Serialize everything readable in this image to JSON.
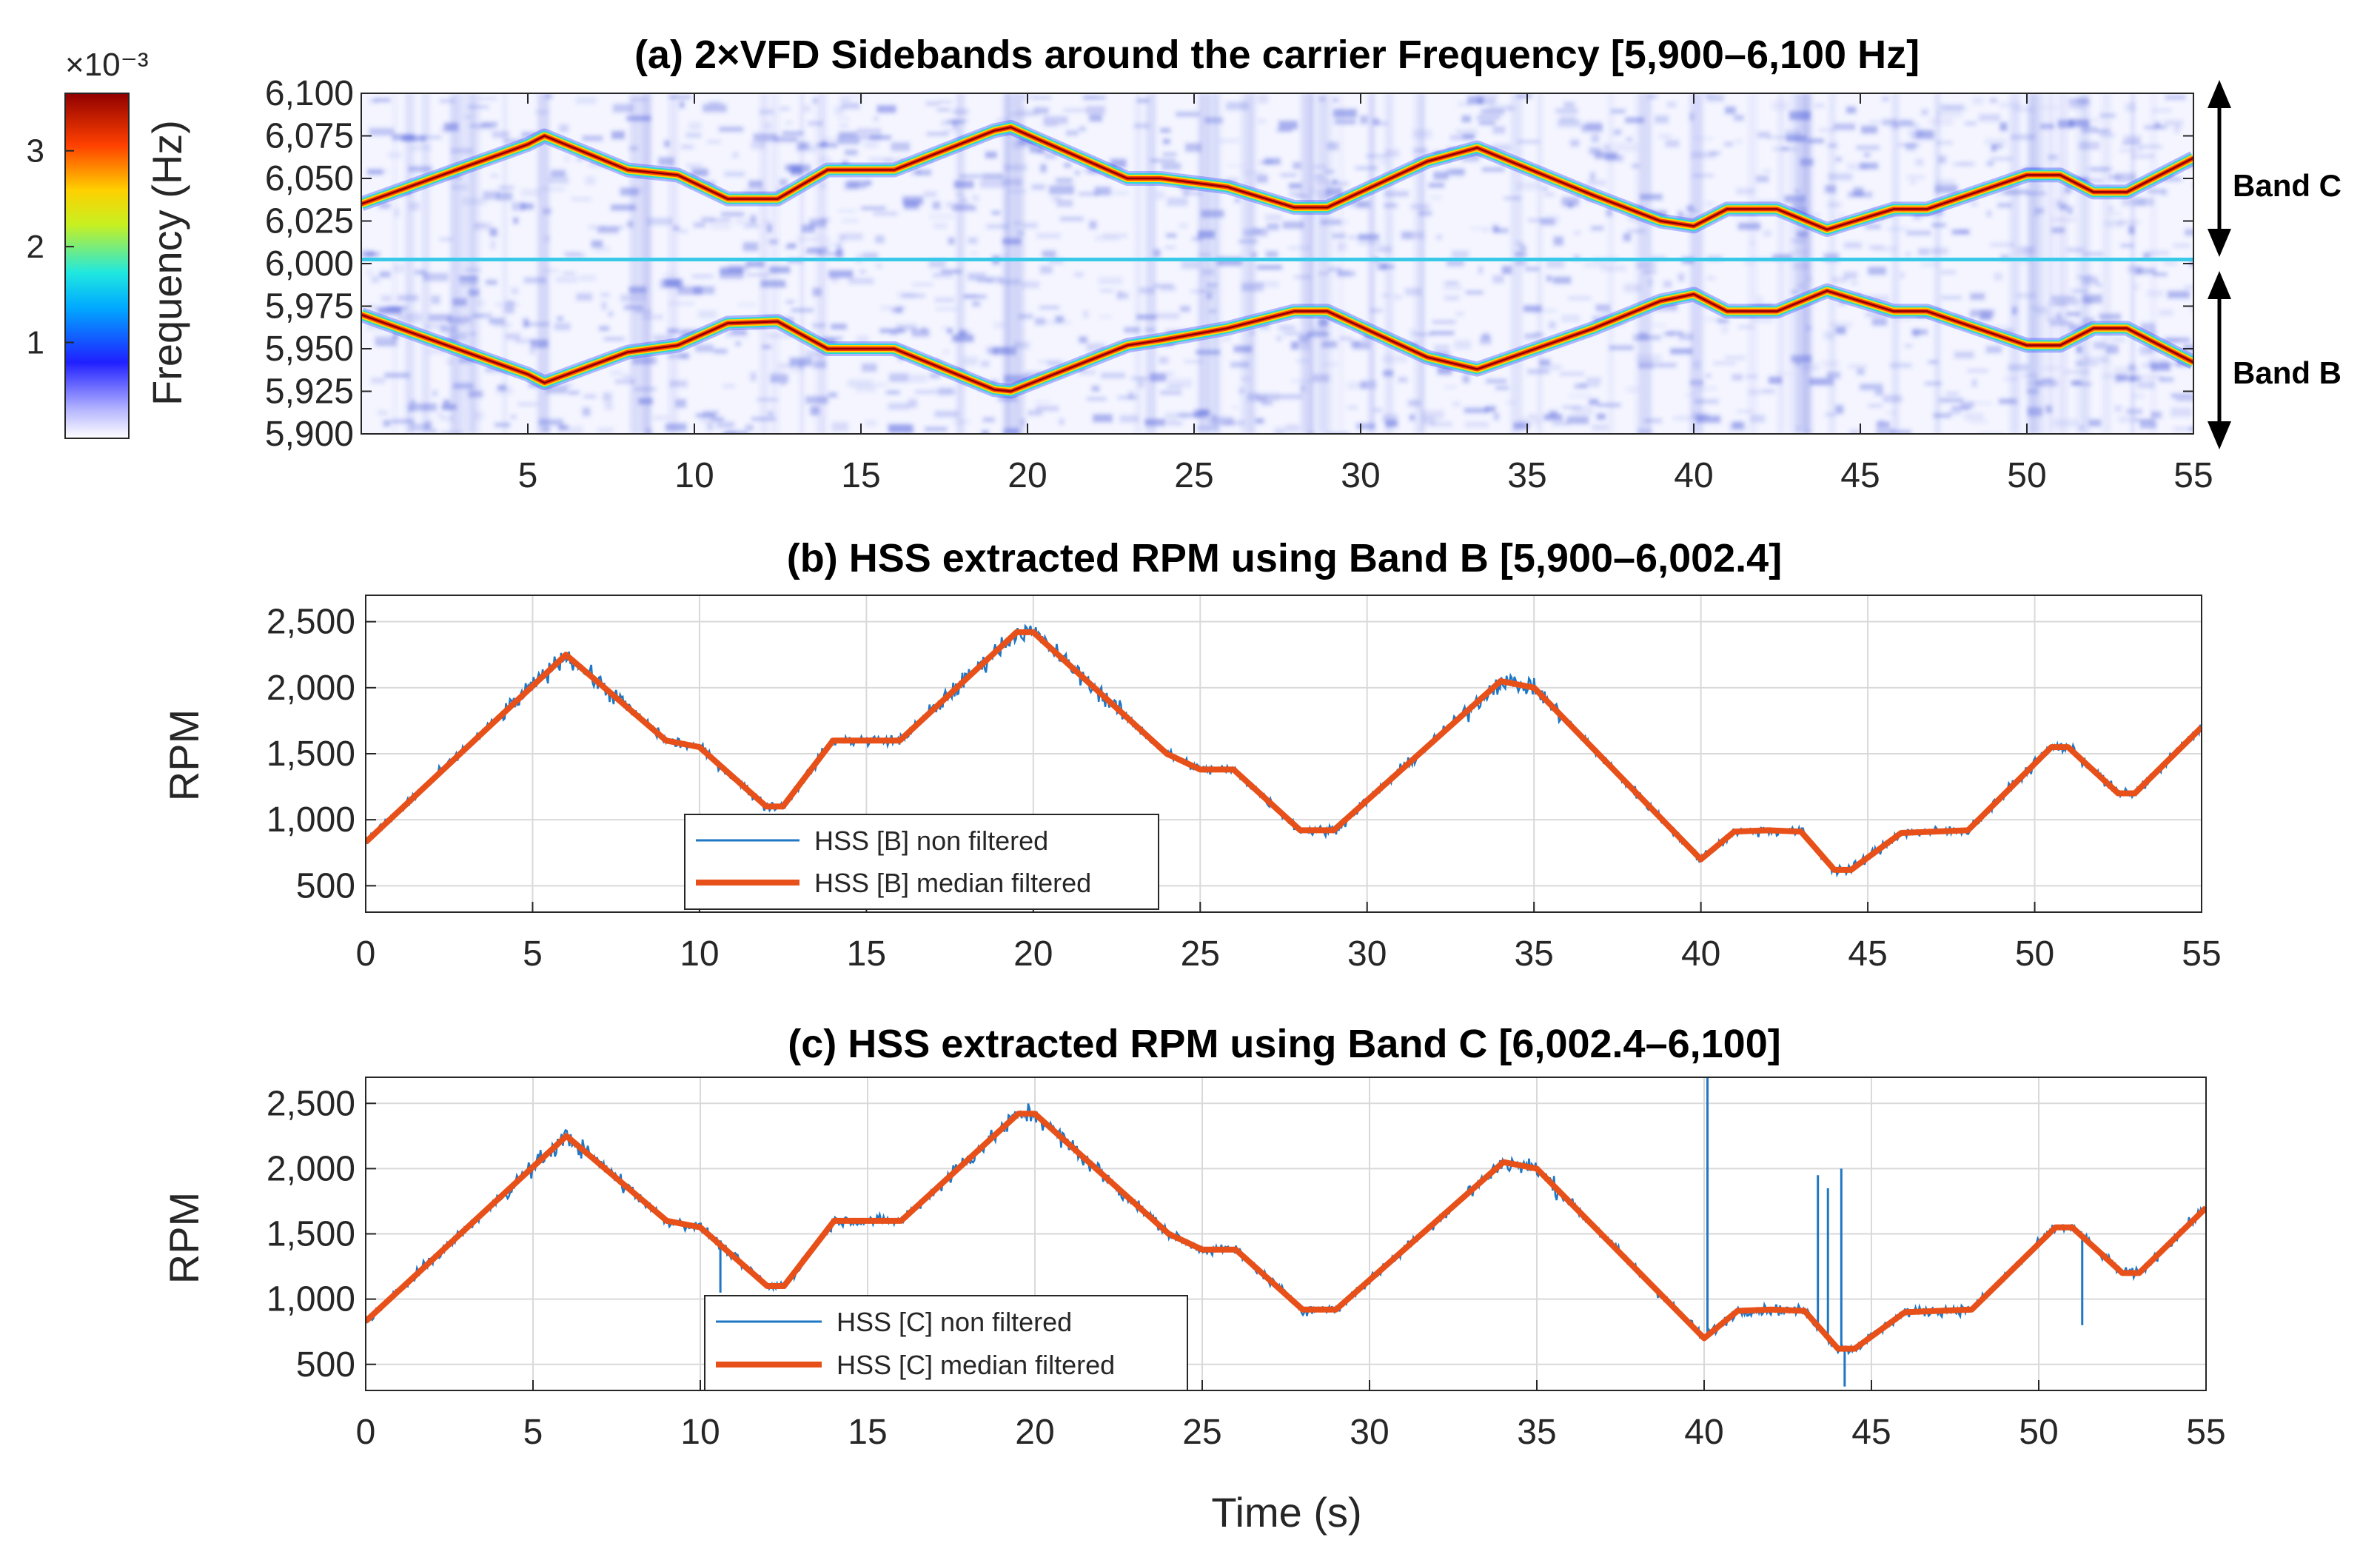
{
  "colors": {
    "raw_series": "#1f77c4",
    "filtered_series": "#e8501a",
    "grid": "#d9d9d9",
    "axis": "#262626",
    "spectrogram_bg": "#eef0ff",
    "spectrogram_noise": "#3d4fd8",
    "carrier_line": "#38c8e8"
  },
  "chart_data": [
    {
      "id": "a",
      "type": "heatmap",
      "title": "(a) 2×VFD Sidebands around the carrier Frequency [5,900–6,100 Hz]",
      "xlabel": "",
      "ylabel": "Frequency (Hz)",
      "xlim": [
        0,
        55
      ],
      "ylim": [
        5900,
        6100
      ],
      "x_ticks": [
        "5",
        "10",
        "15",
        "20",
        "25",
        "30",
        "35",
        "40",
        "45",
        "50",
        "55"
      ],
      "y_ticks": [
        "5,900",
        "5,925",
        "5,950",
        "5,975",
        "6,000",
        "6,025",
        "6,050",
        "6,075",
        "6,100"
      ],
      "colorbar": {
        "exponent_label": "×10⁻³",
        "range": [
          0,
          3.6
        ],
        "ticks": [
          "1",
          "2",
          "3"
        ],
        "colormap": "jet-white"
      },
      "carrier_hz": 6002.4,
      "annotations": [
        {
          "text": "Band C",
          "range_hz": [
            6000,
            6100
          ]
        },
        {
          "text": "Band B",
          "range_hz": [
            5900,
            6000
          ]
        }
      ],
      "series": [
        {
          "name": "upper sideband (Band C)",
          "x": [
            0,
            5,
            5.5,
            8,
            9.5,
            11,
            12.5,
            14,
            16,
            19,
            19.5,
            23,
            24,
            26,
            28,
            29,
            32,
            33.5,
            37,
            39,
            40,
            41,
            42.5,
            44,
            46,
            47,
            50,
            51,
            52,
            53,
            55
          ],
          "y": [
            6035,
            6070,
            6075,
            6055,
            6052,
            6038,
            6038,
            6055,
            6055,
            6078,
            6080,
            6050,
            6050,
            6045,
            6033,
            6033,
            6060,
            6068,
            6040,
            6025,
            6022,
            6032,
            6032,
            6020,
            6032,
            6032,
            6052,
            6052,
            6042,
            6042,
            6062
          ]
        },
        {
          "name": "lower sideband (Band B)",
          "x": [
            0,
            5,
            5.5,
            8,
            9.5,
            11,
            12.5,
            14,
            16,
            19,
            19.5,
            23,
            24,
            26,
            28,
            29,
            32,
            33.5,
            37,
            39,
            40,
            41,
            42.5,
            44,
            46,
            47,
            50,
            51,
            52,
            53,
            55
          ],
          "y": [
            5970,
            5935,
            5930,
            5948,
            5952,
            5965,
            5966,
            5950,
            5950,
            5926,
            5925,
            5952,
            5955,
            5962,
            5972,
            5972,
            5945,
            5938,
            5962,
            5978,
            5982,
            5972,
            5972,
            5984,
            5972,
            5972,
            5952,
            5952,
            5962,
            5962,
            5942
          ]
        }
      ]
    },
    {
      "id": "b",
      "type": "line",
      "title": "(b) HSS extracted RPM using Band B [5,900–6,002.4]",
      "xlabel": "",
      "ylabel": "RPM",
      "xlim": [
        0,
        55
      ],
      "ylim": [
        300,
        2700
      ],
      "x_ticks": [
        "0",
        "5",
        "10",
        "15",
        "20",
        "25",
        "30",
        "35",
        "40",
        "45",
        "50",
        "55"
      ],
      "y_ticks": [
        "500",
        "1,000",
        "1,500",
        "2,000",
        "2,500"
      ],
      "legend": [
        "HSS [B] non filtered",
        "HSS [B] median filtered"
      ],
      "legend_position": "bottom-left",
      "spikes": [],
      "series": [
        {
          "name": "HSS [B] median filtered",
          "x": [
            0,
            6,
            9,
            10,
            12,
            12.5,
            14,
            16,
            19.5,
            20,
            24,
            25,
            26,
            28,
            29,
            34,
            35,
            40,
            41,
            42,
            43,
            44,
            44.5,
            46,
            48,
            50.5,
            51,
            52.5,
            53,
            55
          ],
          "y": [
            830,
            2250,
            1600,
            1550,
            1100,
            1100,
            1600,
            1600,
            2420,
            2420,
            1500,
            1380,
            1380,
            920,
            920,
            2050,
            2000,
            700,
            910,
            920,
            910,
            620,
            620,
            900,
            920,
            1550,
            1550,
            1200,
            1200,
            1700
          ]
        }
      ]
    },
    {
      "id": "c",
      "type": "line",
      "title": "(c) HSS extracted RPM using Band C [6,002.4–6,100]",
      "xlabel": "Time (s)",
      "ylabel": "RPM",
      "xlim": [
        0,
        55
      ],
      "ylim": [
        300,
        2700
      ],
      "x_ticks": [
        "0",
        "5",
        "10",
        "15",
        "20",
        "25",
        "30",
        "35",
        "40",
        "45",
        "50",
        "55"
      ],
      "y_ticks": [
        "500",
        "1,000",
        "1,500",
        "2,000",
        "2,500"
      ],
      "legend": [
        "HSS [C] non filtered",
        "HSS [C] median filtered"
      ],
      "legend_position": "bottom-left",
      "spikes": [
        {
          "x": 40.1,
          "y": 2700
        },
        {
          "x": 43.4,
          "y": 1950
        },
        {
          "x": 43.7,
          "y": 1850
        },
        {
          "x": 44.1,
          "y": 2000
        },
        {
          "x": 44.2,
          "y": 330
        },
        {
          "x": 10.6,
          "y": 1050
        },
        {
          "x": 51.3,
          "y": 800
        }
      ],
      "series": [
        {
          "name": "HSS [C] median filtered",
          "x": [
            0,
            6,
            9,
            10,
            12,
            12.5,
            14,
            16,
            19.5,
            20,
            24,
            25,
            26,
            28,
            29,
            34,
            35,
            40,
            41,
            42,
            43,
            44,
            44.5,
            46,
            48,
            50.5,
            51,
            52.5,
            53,
            55
          ],
          "y": [
            830,
            2250,
            1600,
            1550,
            1100,
            1100,
            1600,
            1600,
            2420,
            2420,
            1500,
            1380,
            1380,
            920,
            920,
            2050,
            2000,
            700,
            910,
            920,
            910,
            620,
            620,
            900,
            920,
            1550,
            1550,
            1200,
            1200,
            1700
          ]
        }
      ]
    }
  ]
}
